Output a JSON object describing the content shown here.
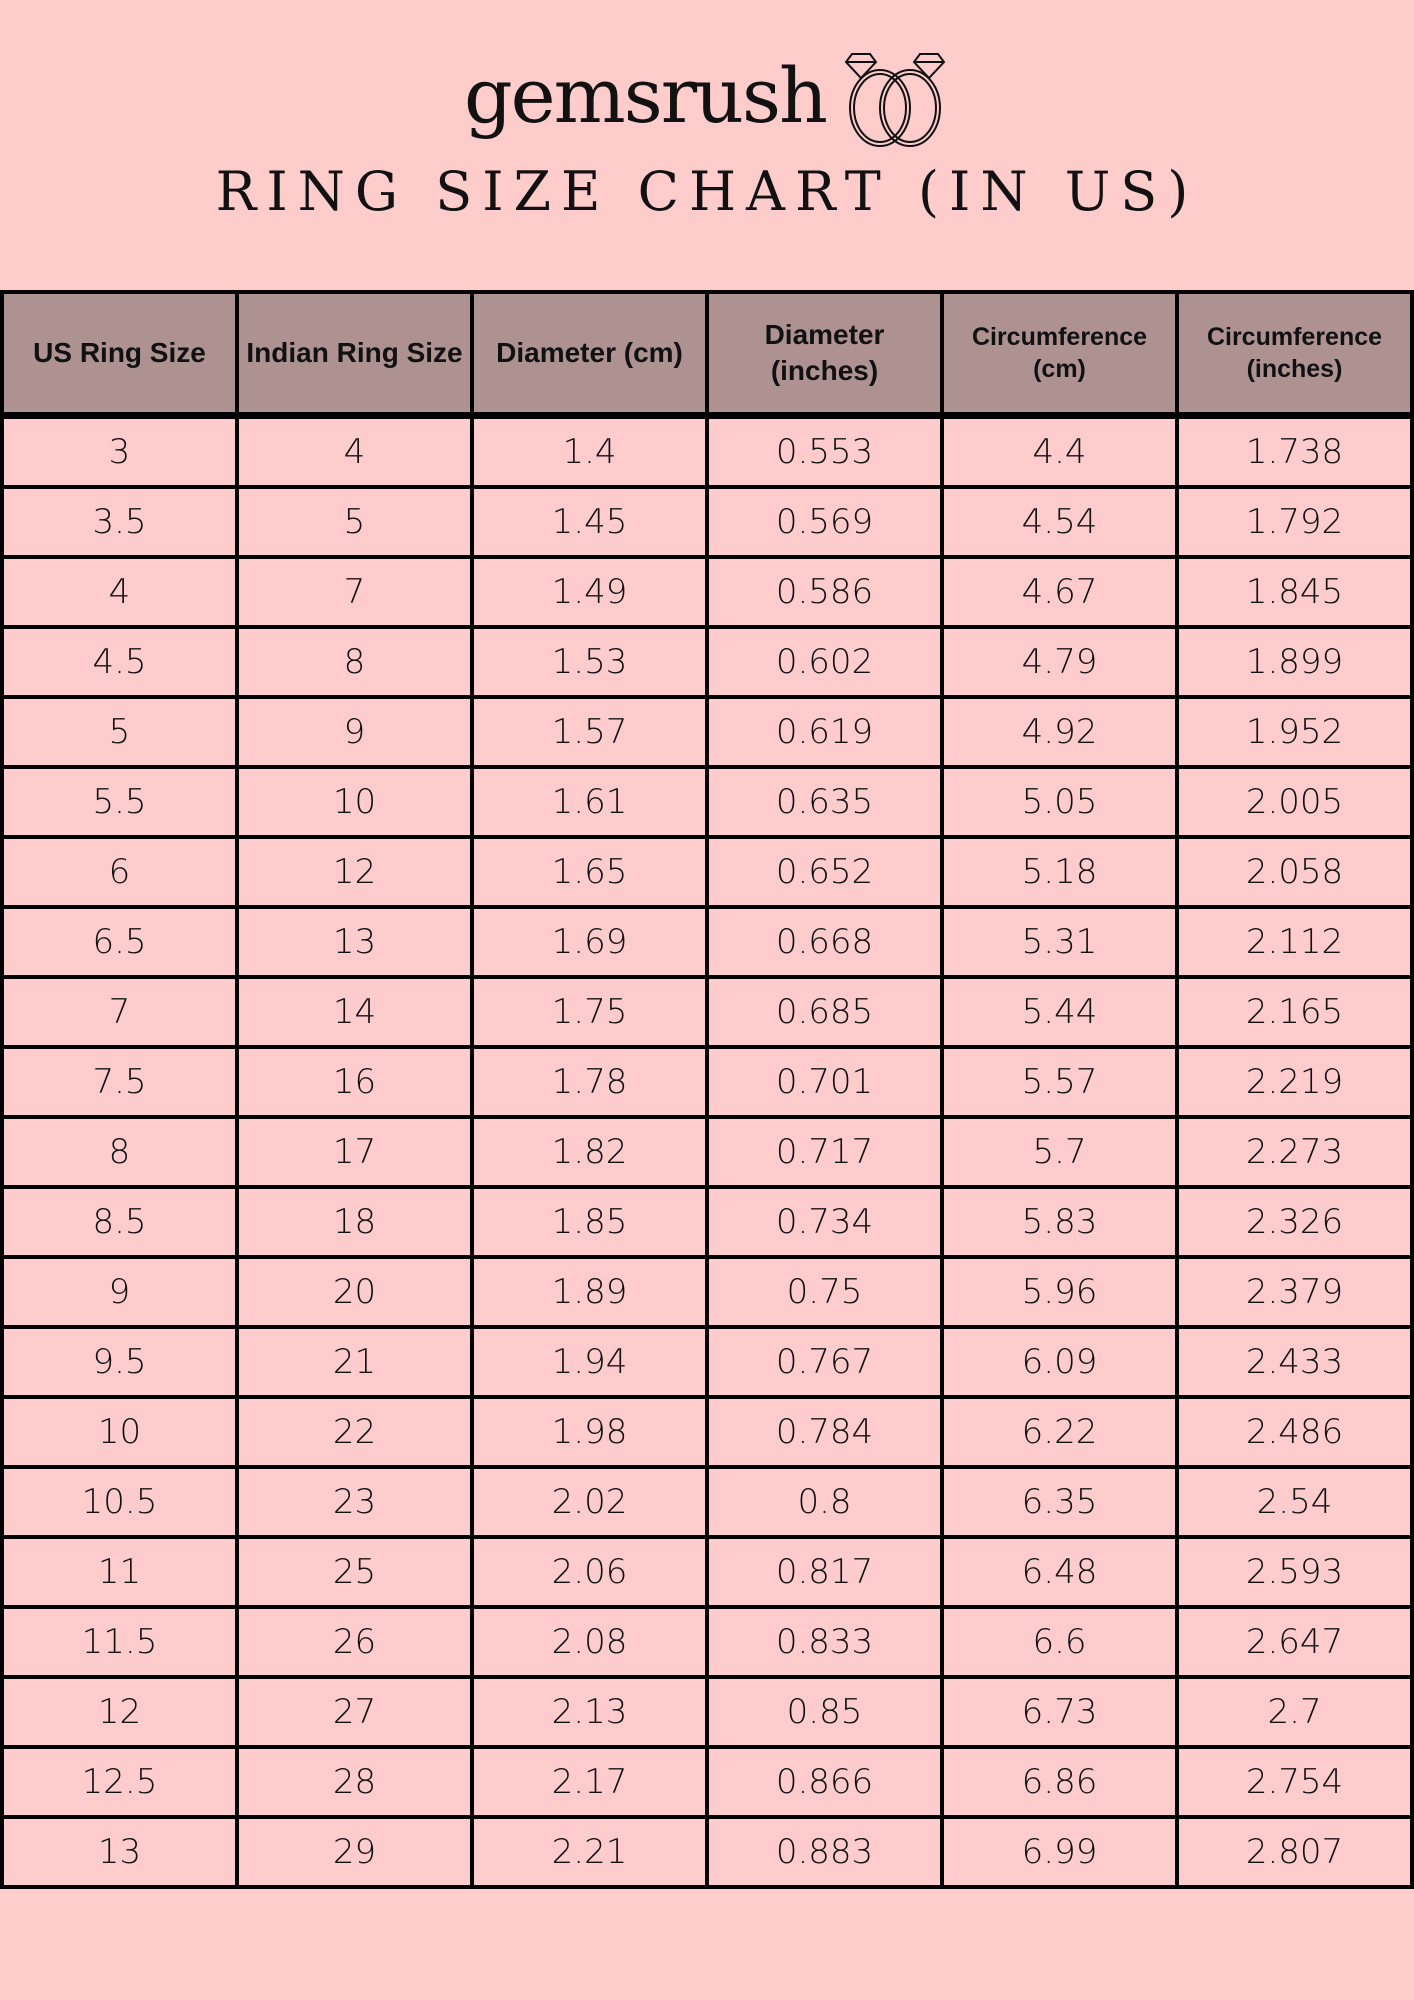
{
  "brand": {
    "logo_text": "gemsrush",
    "logo_icon": "diamond-rings-icon"
  },
  "title": "RING SIZE CHART (IN US)",
  "colors": {
    "background": "#ffcccc",
    "header_bg": "#ad9291",
    "border": "#000000"
  },
  "table": {
    "headers": [
      "US Ring Size",
      "Indian Ring Size",
      "Diameter (cm)",
      "Diameter (inches)",
      "Circumference (cm)",
      "Circumference (inches)"
    ],
    "rows": [
      [
        "3",
        "4",
        "1.4",
        "0.553",
        "4.4",
        "1.738"
      ],
      [
        "3.5",
        "5",
        "1.45",
        "0.569",
        "4.54",
        "1.792"
      ],
      [
        "4",
        "7",
        "1.49",
        "0.586",
        "4.67",
        "1.845"
      ],
      [
        "4.5",
        "8",
        "1.53",
        "0.602",
        "4.79",
        "1.899"
      ],
      [
        "5",
        "9",
        "1.57",
        "0.619",
        "4.92",
        "1.952"
      ],
      [
        "5.5",
        "10",
        "1.61",
        "0.635",
        "5.05",
        "2.005"
      ],
      [
        "6",
        "12",
        "1.65",
        "0.652",
        "5.18",
        "2.058"
      ],
      [
        "6.5",
        "13",
        "1.69",
        "0.668",
        "5.31",
        "2.112"
      ],
      [
        "7",
        "14",
        "1.75",
        "0.685",
        "5.44",
        "2.165"
      ],
      [
        "7.5",
        "16",
        "1.78",
        "0.701",
        "5.57",
        "2.219"
      ],
      [
        "8",
        "17",
        "1.82",
        "0.717",
        "5.7",
        "2.273"
      ],
      [
        "8.5",
        "18",
        "1.85",
        "0.734",
        "5.83",
        "2.326"
      ],
      [
        "9",
        "20",
        "1.89",
        "0.75",
        "5.96",
        "2.379"
      ],
      [
        "9.5",
        "21",
        "1.94",
        "0.767",
        "6.09",
        "2.433"
      ],
      [
        "10",
        "22",
        "1.98",
        "0.784",
        "6.22",
        "2.486"
      ],
      [
        "10.5",
        "23",
        "2.02",
        "0.8",
        "6.35",
        "2.54"
      ],
      [
        "11",
        "25",
        "2.06",
        "0.817",
        "6.48",
        "2.593"
      ],
      [
        "11.5",
        "26",
        "2.08",
        "0.833",
        "6.6",
        "2.647"
      ],
      [
        "12",
        "27",
        "2.13",
        "0.85",
        "6.73",
        "2.7"
      ],
      [
        "12.5",
        "28",
        "2.17",
        "0.866",
        "6.86",
        "2.754"
      ],
      [
        "13",
        "29",
        "2.21",
        "0.883",
        "6.99",
        "2.807"
      ]
    ]
  }
}
